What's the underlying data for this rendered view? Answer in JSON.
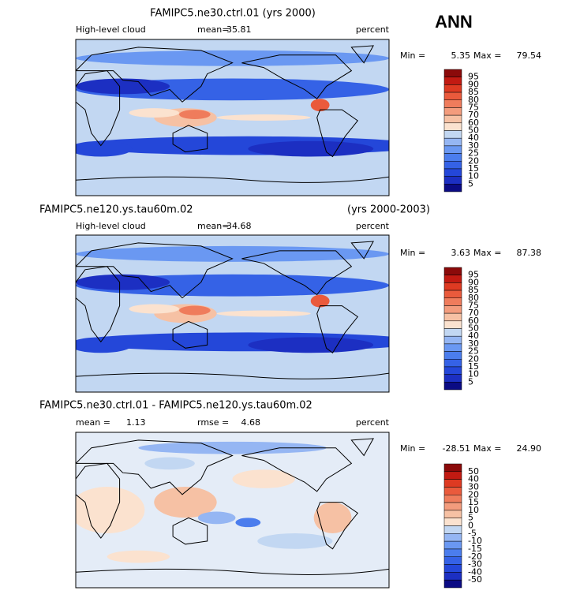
{
  "label": "ANN",
  "panels": [
    {
      "title": "FAMIPC5.ne30.ctrl.01 (yrs 2000)",
      "field": "High-level cloud",
      "mean_label": "mean=",
      "mean": 35.81,
      "units": "percent",
      "min_label": "Min =",
      "min": 5.35,
      "max_label": "Max =",
      "max": 79.54,
      "colorbar": {
        "levels": [
          95,
          90,
          85,
          80,
          75,
          70,
          60,
          50,
          40,
          30,
          25,
          20,
          15,
          10,
          5
        ],
        "colors": [
          "#8b0a0a",
          "#c21a12",
          "#de3a22",
          "#ea5a3c",
          "#ef7c5c",
          "#f39c7d",
          "#f6c1a4",
          "#fbe2cf",
          "#c2d7f2",
          "#95b6f3",
          "#6a98f2",
          "#4b7ded",
          "#3562e6",
          "#2447d9",
          "#1c2fc2",
          "#0b0b84"
        ]
      }
    },
    {
      "title": "FAMIPC5.ne120.ys.tau60m.02",
      "title_right": "(yrs 2000-2003)",
      "field": "High-level cloud",
      "mean_label": "mean=",
      "mean": 34.68,
      "units": "percent",
      "min_label": "Min =",
      "min": 3.63,
      "max_label": "Max =",
      "max": 87.38,
      "colorbar": {
        "levels": [
          95,
          90,
          85,
          80,
          75,
          70,
          60,
          50,
          40,
          30,
          25,
          20,
          15,
          10,
          5
        ],
        "colors": [
          "#8b0a0a",
          "#c21a12",
          "#de3a22",
          "#ea5a3c",
          "#ef7c5c",
          "#f39c7d",
          "#f6c1a4",
          "#fbe2cf",
          "#c2d7f2",
          "#95b6f3",
          "#6a98f2",
          "#4b7ded",
          "#3562e6",
          "#2447d9",
          "#1c2fc2",
          "#0b0b84"
        ]
      }
    },
    {
      "title": "FAMIPC5.ne30.ctrl.01 - FAMIPC5.ne120.ys.tau60m.02",
      "mean_label": "mean =",
      "mean": 1.13,
      "rmse_label": "rmse =",
      "rmse": 4.68,
      "units": "percent",
      "min_label": "Min =",
      "min": -28.51,
      "max_label": "Max =",
      "max": {
        "value": 24.9,
        "label": "24.90"
      },
      "colorbar": {
        "levels": [
          50,
          40,
          30,
          20,
          15,
          10,
          5,
          0,
          -5,
          -10,
          -15,
          -20,
          -30,
          -40,
          -50
        ],
        "colors": [
          "#8b0a0a",
          "#c21a12",
          "#de3a22",
          "#ea5a3c",
          "#ef7c5c",
          "#f39c7d",
          "#f6c1a4",
          "#fbe2cf",
          "#c2d7f2",
          "#95b6f3",
          "#6a98f2",
          "#4b7ded",
          "#3562e6",
          "#2447d9",
          "#1c2fc2",
          "#0b0b84"
        ]
      }
    }
  ]
}
